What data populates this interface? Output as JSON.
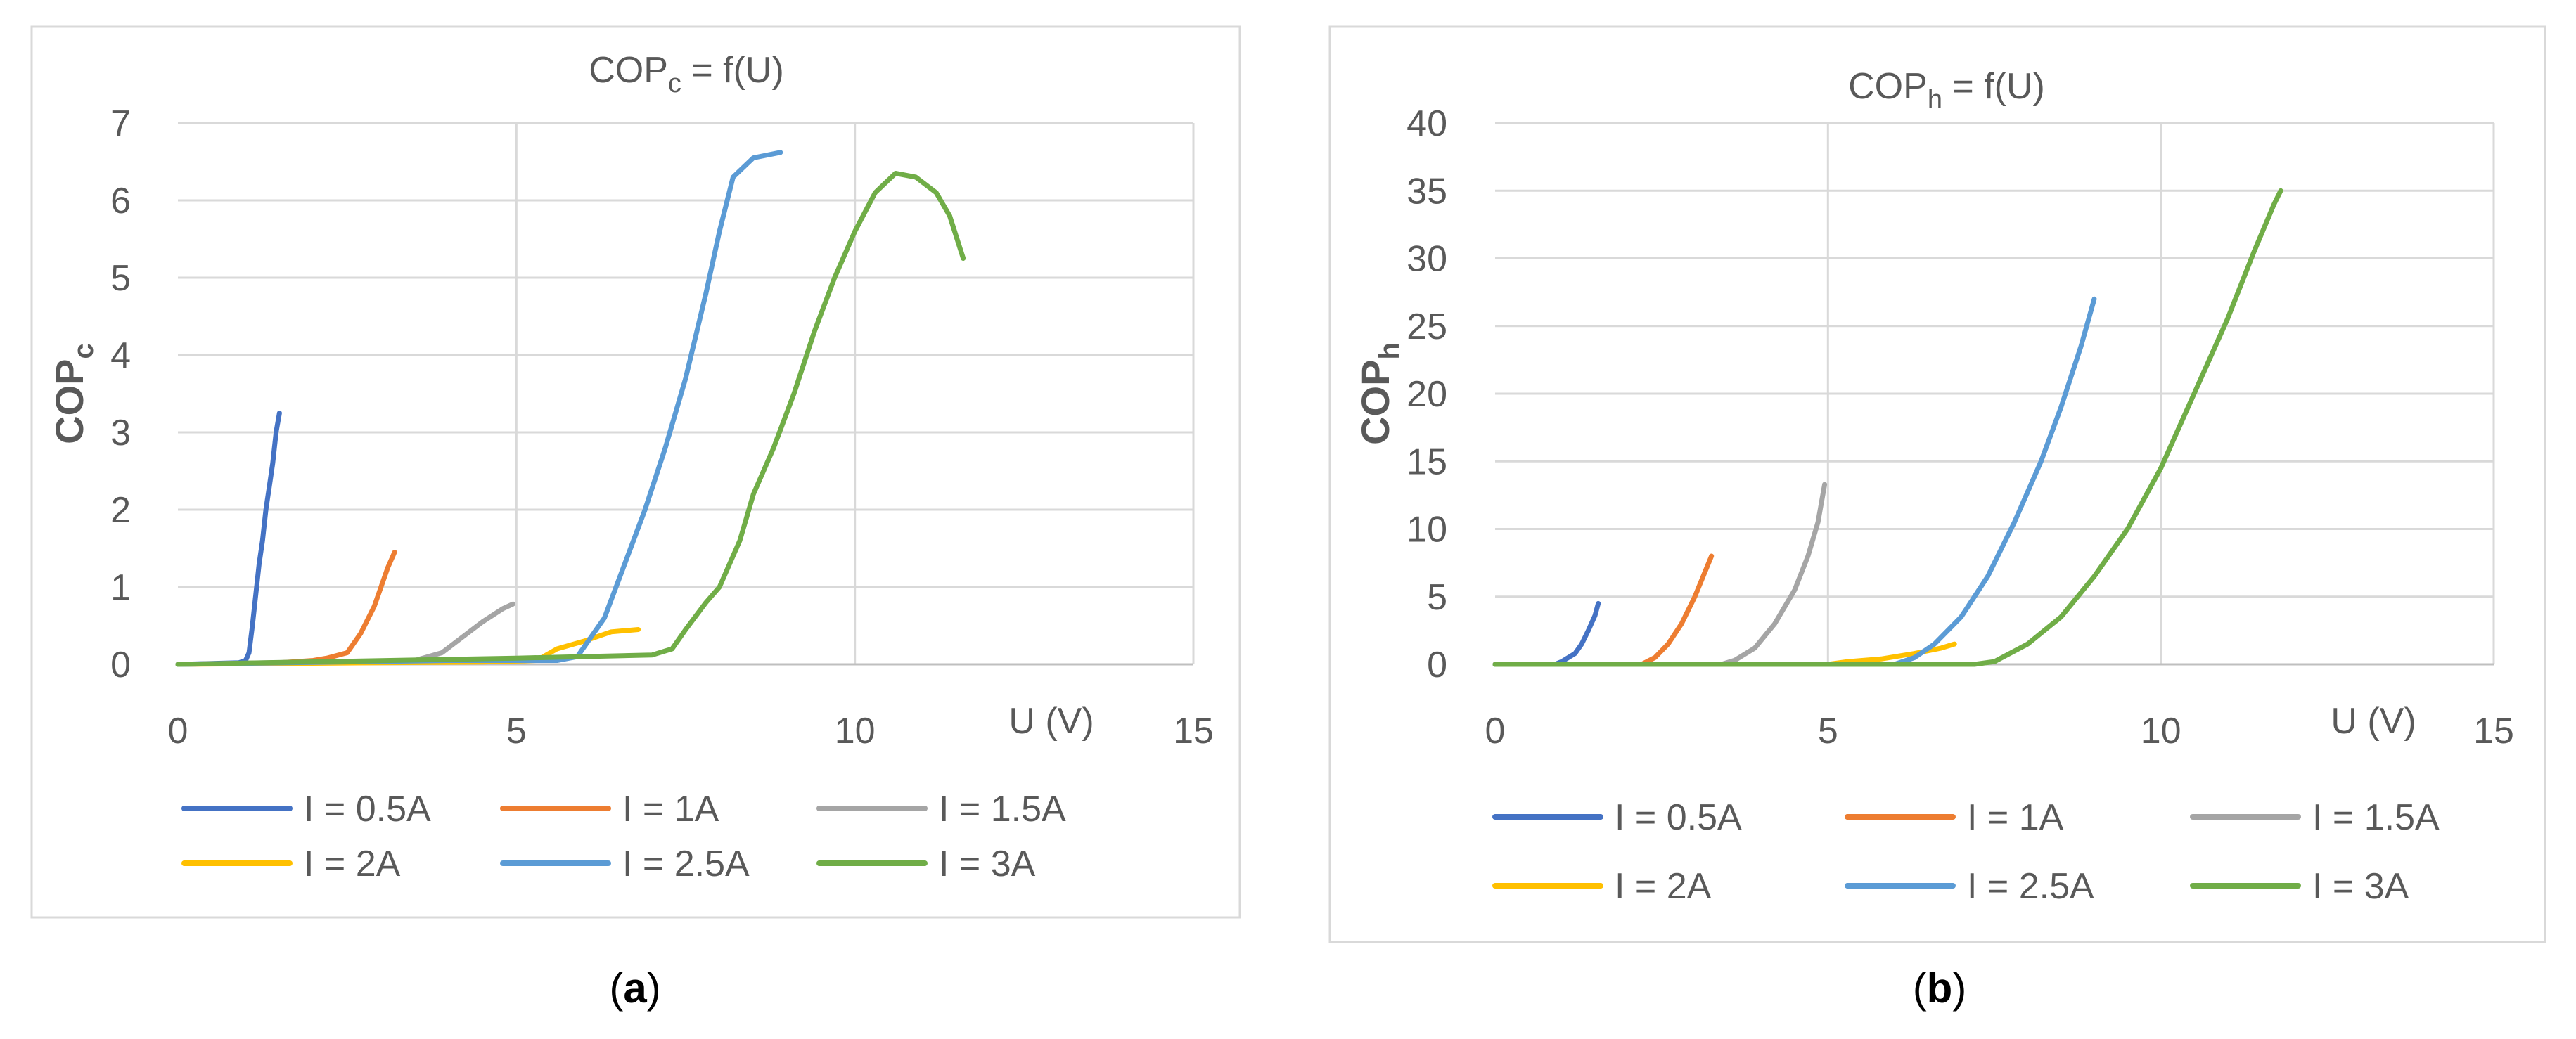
{
  "chart_data": [
    {
      "type": "line",
      "title_main": "COP",
      "title_sub": "c",
      "title_rest": " = f(U)",
      "ylabel_main": "COP",
      "ylabel_sub": "c",
      "xlabel": "U (V)",
      "xlim": [
        0,
        15
      ],
      "ylim": [
        0,
        7
      ],
      "xticks": [
        0,
        5,
        10,
        15
      ],
      "yticks": [
        0,
        1,
        2,
        3,
        4,
        5,
        6,
        7
      ],
      "grid": true,
      "legend_position": "bottom",
      "caption": "(a)",
      "caption_letter": "a",
      "series": [
        {
          "name": "I = 0.5A",
          "color": "#4472C4",
          "points": [
            [
              0,
              0
            ],
            [
              0.9,
              0.02
            ],
            [
              1.0,
              0.05
            ],
            [
              1.05,
              0.15
            ],
            [
              1.1,
              0.5
            ],
            [
              1.15,
              0.9
            ],
            [
              1.2,
              1.3
            ],
            [
              1.25,
              1.6
            ],
            [
              1.3,
              2.0
            ],
            [
              1.35,
              2.3
            ],
            [
              1.4,
              2.6
            ],
            [
              1.45,
              3.0
            ],
            [
              1.5,
              3.25
            ]
          ]
        },
        {
          "name": "I = 1A",
          "color": "#ED7D31",
          "points": [
            [
              0,
              0
            ],
            [
              1.5,
              0.02
            ],
            [
              2.0,
              0.05
            ],
            [
              2.2,
              0.08
            ],
            [
              2.5,
              0.15
            ],
            [
              2.7,
              0.4
            ],
            [
              2.9,
              0.75
            ],
            [
              3.0,
              1.0
            ],
            [
              3.1,
              1.25
            ],
            [
              3.2,
              1.45
            ]
          ]
        },
        {
          "name": "I = 1.5A",
          "color": "#A5A5A5",
          "points": [
            [
              0,
              0
            ],
            [
              2,
              0.03
            ],
            [
              3.5,
              0.05
            ],
            [
              3.9,
              0.15
            ],
            [
              4.2,
              0.35
            ],
            [
              4.5,
              0.55
            ],
            [
              4.8,
              0.72
            ],
            [
              4.95,
              0.78
            ]
          ]
        },
        {
          "name": "I = 2A",
          "color": "#FFC000",
          "points": [
            [
              0,
              0
            ],
            [
              3,
              0.02
            ],
            [
              4.5,
              0.03
            ],
            [
              5.3,
              0.05
            ],
            [
              5.6,
              0.2
            ],
            [
              6.0,
              0.3
            ],
            [
              6.4,
              0.42
            ],
            [
              6.8,
              0.45
            ]
          ]
        },
        {
          "name": "I = 2.5A",
          "color": "#5B9BD5",
          "points": [
            [
              0,
              0
            ],
            [
              4,
              0.05
            ],
            [
              5.6,
              0.05
            ],
            [
              5.9,
              0.1
            ],
            [
              6.3,
              0.6
            ],
            [
              6.6,
              1.3
            ],
            [
              6.9,
              2.0
            ],
            [
              7.2,
              2.8
            ],
            [
              7.5,
              3.7
            ],
            [
              7.8,
              4.8
            ],
            [
              8.0,
              5.6
            ],
            [
              8.2,
              6.3
            ],
            [
              8.5,
              6.55
            ],
            [
              8.9,
              6.62
            ]
          ]
        },
        {
          "name": "I = 3A",
          "color": "#70AD47",
          "points": [
            [
              0,
              0
            ],
            [
              5,
              0.08
            ],
            [
              7.0,
              0.12
            ],
            [
              7.3,
              0.2
            ],
            [
              7.5,
              0.45
            ],
            [
              7.8,
              0.8
            ],
            [
              8.0,
              1.0
            ],
            [
              8.3,
              1.6
            ],
            [
              8.5,
              2.2
            ],
            [
              8.8,
              2.8
            ],
            [
              9.1,
              3.5
            ],
            [
              9.4,
              4.3
            ],
            [
              9.7,
              5.0
            ],
            [
              10.0,
              5.6
            ],
            [
              10.3,
              6.1
            ],
            [
              10.6,
              6.35
            ],
            [
              10.9,
              6.3
            ],
            [
              11.2,
              6.1
            ],
            [
              11.4,
              5.8
            ],
            [
              11.6,
              5.25
            ]
          ]
        }
      ]
    },
    {
      "type": "line",
      "title_main": "COP",
      "title_sub": "h",
      "title_rest": " = f(U)",
      "ylabel_main": "COP",
      "ylabel_sub": "h",
      "xlabel": "U (V)",
      "xlim": [
        0,
        15
      ],
      "ylim": [
        0,
        40
      ],
      "xticks": [
        0,
        5,
        10,
        15
      ],
      "yticks": [
        0,
        5,
        10,
        15,
        20,
        25,
        30,
        35,
        40
      ],
      "grid": true,
      "legend_position": "bottom",
      "caption": "(b)",
      "caption_letter": "b",
      "series": [
        {
          "name": "I = 0.5A",
          "color": "#4472C4",
          "points": [
            [
              0,
              0
            ],
            [
              0.9,
              0
            ],
            [
              1.0,
              0.2
            ],
            [
              1.1,
              0.5
            ],
            [
              1.2,
              0.8
            ],
            [
              1.3,
              1.5
            ],
            [
              1.4,
              2.5
            ],
            [
              1.5,
              3.6
            ],
            [
              1.55,
              4.5
            ]
          ]
        },
        {
          "name": "I = 1A",
          "color": "#ED7D31",
          "points": [
            [
              0,
              0
            ],
            [
              2.2,
              0
            ],
            [
              2.4,
              0.5
            ],
            [
              2.6,
              1.5
            ],
            [
              2.8,
              3.0
            ],
            [
              3.0,
              5.0
            ],
            [
              3.15,
              6.8
            ],
            [
              3.25,
              8.0
            ]
          ]
        },
        {
          "name": "I = 1.5A",
          "color": "#A5A5A5",
          "points": [
            [
              0,
              0
            ],
            [
              3.4,
              0
            ],
            [
              3.6,
              0.3
            ],
            [
              3.9,
              1.2
            ],
            [
              4.2,
              3.0
            ],
            [
              4.5,
              5.5
            ],
            [
              4.7,
              8.0
            ],
            [
              4.85,
              10.5
            ],
            [
              4.95,
              13.3
            ]
          ]
        },
        {
          "name": "I = 2A",
          "color": "#FFC000",
          "points": [
            [
              0,
              0
            ],
            [
              5,
              0
            ],
            [
              5.3,
              0.2
            ],
            [
              5.8,
              0.4
            ],
            [
              6.3,
              0.8
            ],
            [
              6.7,
              1.2
            ],
            [
              6.9,
              1.5
            ]
          ]
        },
        {
          "name": "I = 2.5A",
          "color": "#5B9BD5",
          "points": [
            [
              0,
              0
            ],
            [
              6.0,
              0
            ],
            [
              6.3,
              0.5
            ],
            [
              6.6,
              1.5
            ],
            [
              7.0,
              3.5
            ],
            [
              7.4,
              6.5
            ],
            [
              7.8,
              10.5
            ],
            [
              8.2,
              15.0
            ],
            [
              8.5,
              19.0
            ],
            [
              8.8,
              23.5
            ],
            [
              9.0,
              27.0
            ]
          ]
        },
        {
          "name": "I = 3A",
          "color": "#70AD47",
          "points": [
            [
              0,
              0
            ],
            [
              7.2,
              0
            ],
            [
              7.5,
              0.2
            ],
            [
              8.0,
              1.5
            ],
            [
              8.5,
              3.5
            ],
            [
              9.0,
              6.5
            ],
            [
              9.5,
              10.0
            ],
            [
              10.0,
              14.5
            ],
            [
              10.5,
              20.0
            ],
            [
              11.0,
              25.5
            ],
            [
              11.4,
              30.5
            ],
            [
              11.7,
              34.0
            ],
            [
              11.8,
              35.0
            ]
          ]
        }
      ]
    }
  ]
}
